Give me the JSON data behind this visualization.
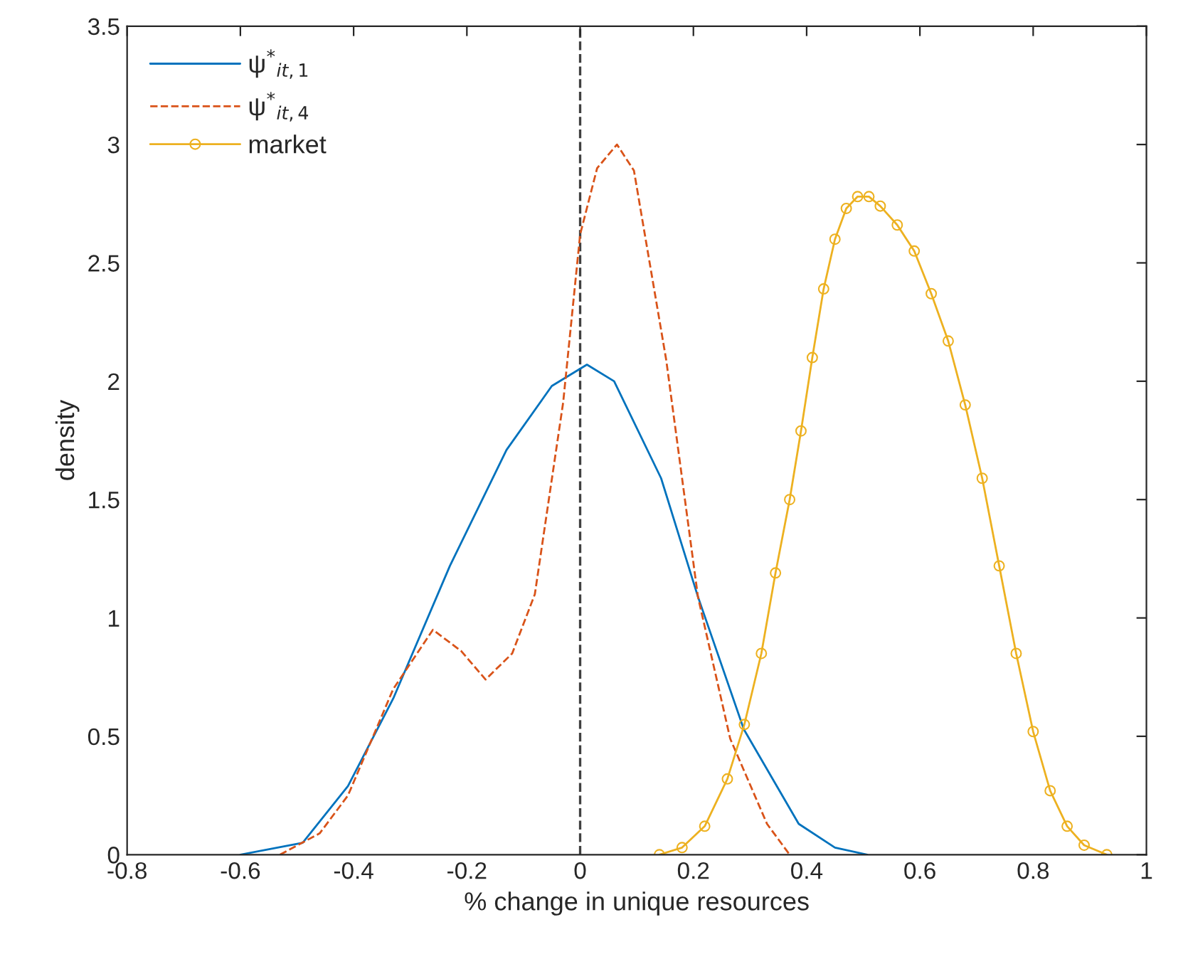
{
  "chart_data": {
    "type": "line",
    "xlabel": "% change in unique resources",
    "ylabel": "density",
    "xlim": [
      -0.8,
      1
    ],
    "ylim": [
      0,
      3.5
    ],
    "xticks": [
      -0.8,
      -0.6,
      -0.4,
      -0.2,
      0,
      0.2,
      0.4,
      0.6,
      0.8,
      1
    ],
    "yticks": [
      0,
      0.5,
      1,
      1.5,
      2,
      2.5,
      3,
      3.5
    ],
    "grid": false,
    "legend": "top left",
    "ref_lines": [
      {
        "axis": "x",
        "value": 0,
        "color": "#404040",
        "line_style": "dashed"
      }
    ],
    "series": [
      {
        "name": "ψ$^{*}$$_{it,1}$",
        "color": "#0072bd",
        "line_style": "solid",
        "marker": "none",
        "x": [
          -0.6,
          -0.49,
          -0.41,
          -0.33,
          -0.23,
          -0.13,
          -0.05,
          0.012,
          0.06,
          0.143,
          0.208,
          0.289,
          0.386,
          0.45,
          0.507
        ],
        "values": [
          0,
          0.05,
          0.29,
          0.66,
          1.22,
          1.71,
          1.98,
          2.07,
          2.0,
          1.59,
          1.09,
          0.53,
          0.13,
          0.03,
          0
        ]
      },
      {
        "name": "ψ$^{*}$$_{it,4}$",
        "color": "#d95319",
        "line_style": "dashed",
        "marker": "none",
        "x": [
          -0.53,
          -0.46,
          -0.41,
          -0.33,
          -0.26,
          -0.21,
          -0.167,
          -0.12,
          -0.08,
          -0.03,
          0,
          0.03,
          0.065,
          0.095,
          0.152,
          0.208,
          0.265,
          0.33,
          0.37
        ],
        "values": [
          0,
          0.09,
          0.25,
          0.7,
          0.95,
          0.86,
          0.74,
          0.85,
          1.1,
          1.91,
          2.62,
          2.9,
          3.0,
          2.89,
          2.09,
          1.09,
          0.49,
          0.13,
          0
        ]
      },
      {
        "name": "market",
        "color": "#edb120",
        "line_style": "solid",
        "marker": "circle",
        "x": [
          0.14,
          0.18,
          0.22,
          0.26,
          0.29,
          0.32,
          0.345,
          0.37,
          0.39,
          0.41,
          0.43,
          0.45,
          0.47,
          0.49,
          0.51,
          0.53,
          0.56,
          0.59,
          0.62,
          0.65,
          0.68,
          0.71,
          0.74,
          0.77,
          0.8,
          0.83,
          0.86,
          0.89,
          0.93
        ],
        "values": [
          0,
          0.03,
          0.12,
          0.32,
          0.55,
          0.85,
          1.19,
          1.5,
          1.79,
          2.1,
          2.39,
          2.6,
          2.73,
          2.78,
          2.78,
          2.74,
          2.66,
          2.55,
          2.37,
          2.17,
          1.9,
          1.59,
          1.22,
          0.85,
          0.52,
          0.27,
          0.12,
          0.04,
          0
        ]
      }
    ]
  }
}
